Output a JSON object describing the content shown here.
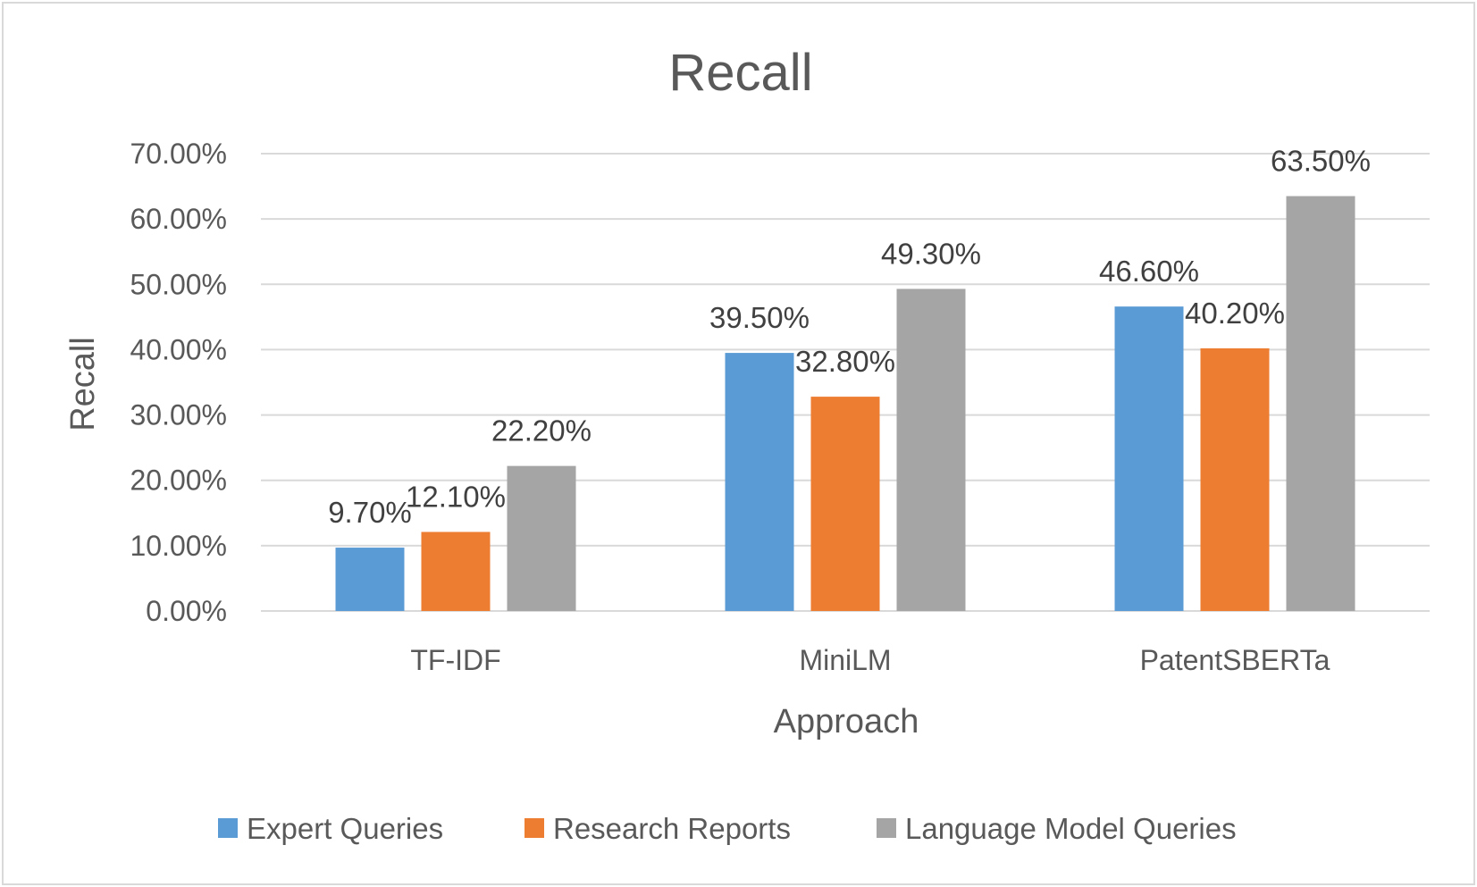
{
  "chart_data": {
    "type": "bar",
    "title": "Recall",
    "xlabel": "Approach",
    "ylabel": "Recall",
    "categories": [
      "TF-IDF",
      "MiniLM",
      "PatentSBERTa"
    ],
    "series": [
      {
        "name": "Expert Queries",
        "color": "#5b9bd5",
        "values": [
          9.7,
          39.5,
          46.6
        ],
        "labels": [
          "9.70%",
          "39.50%",
          "46.60%"
        ]
      },
      {
        "name": "Research Reports",
        "color": "#ed7d31",
        "values": [
          12.1,
          32.8,
          40.2
        ],
        "labels": [
          "12.10%",
          "32.80%",
          "40.20%"
        ]
      },
      {
        "name": "Language Model Queries",
        "color": "#a5a5a5",
        "values": [
          22.2,
          49.3,
          63.5
        ],
        "labels": [
          "22.20%",
          "49.30%",
          "63.50%"
        ]
      }
    ],
    "ylim": [
      0,
      70
    ],
    "yticks": [
      0,
      10,
      20,
      30,
      40,
      50,
      60,
      70
    ],
    "ytick_labels": [
      "0.00%",
      "10.00%",
      "20.00%",
      "30.00%",
      "40.00%",
      "50.00%",
      "60.00%",
      "70.00%"
    ],
    "grid": true,
    "legend": "bottom"
  }
}
